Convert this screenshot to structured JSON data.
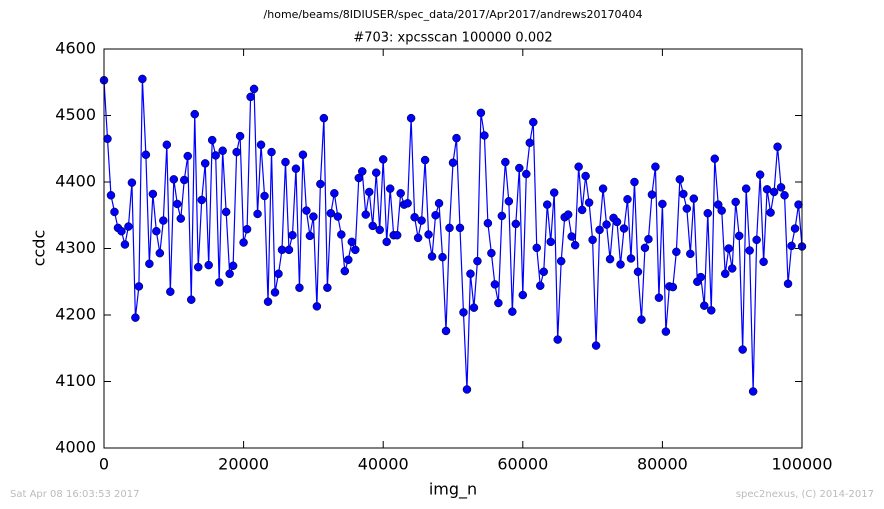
{
  "chart_data": {
    "type": "line",
    "title": "/home/beams/8IDIUSER/spec_data/2017/Apr2017/andrews20170404",
    "subtitle": "#703: xpcsscan 100000 0.002",
    "x_label": "img_n",
    "y_label": "ccdc",
    "footer_left": "Sat Apr 08 16:03:53 2017",
    "footer_right": "spec2nexus, (C) 2014-2017",
    "xlim": [
      0,
      100000
    ],
    "xticks": [
      0,
      20000,
      40000,
      60000,
      80000,
      100000
    ],
    "ylim": [
      4000,
      4600
    ],
    "yticks": [
      4000,
      4100,
      4200,
      4300,
      4400,
      4500,
      4600
    ],
    "x": [
      0,
      500,
      1000,
      1500,
      2000,
      2500,
      3000,
      3500,
      4000,
      4500,
      5000,
      5500,
      6000,
      6500,
      7000,
      7500,
      8000,
      8500,
      9000,
      9500,
      10000,
      10500,
      11000,
      11500,
      12000,
      12500,
      13000,
      13500,
      14000,
      14500,
      15000,
      15500,
      16000,
      16500,
      17000,
      17500,
      18000,
      18500,
      19000,
      19500,
      20000,
      20500,
      21000,
      21500,
      22000,
      22500,
      23000,
      23500,
      24000,
      24500,
      25000,
      25500,
      26000,
      26500,
      27000,
      27500,
      28000,
      28500,
      29000,
      29500,
      30000,
      30500,
      31000,
      31500,
      32000,
      32500,
      33000,
      33500,
      34000,
      34500,
      35000,
      35500,
      36000,
      36500,
      37000,
      37500,
      38000,
      38500,
      39000,
      39500,
      40000,
      40500,
      41000,
      41500,
      42000,
      42500,
      43000,
      43500,
      44000,
      44500,
      45000,
      45500,
      46000,
      46500,
      47000,
      47500,
      48000,
      48500,
      49000,
      49500,
      50000,
      50500,
      51000,
      51500,
      52000,
      52500,
      53000,
      53500,
      54000,
      54500,
      55000,
      55500,
      56000,
      56500,
      57000,
      57500,
      58000,
      58500,
      59000,
      59500,
      60000,
      60500,
      61000,
      61500,
      62000,
      62500,
      63000,
      63500,
      64000,
      64500,
      65000,
      65500,
      66000,
      66500,
      67000,
      67500,
      68000,
      68500,
      69000,
      69500,
      70000,
      70500,
      71000,
      71500,
      72000,
      72500,
      73000,
      73500,
      74000,
      74500,
      75000,
      75500,
      76000,
      76500,
      77000,
      77500,
      78000,
      78500,
      79000,
      79500,
      80000,
      80500,
      81000,
      81500,
      82000,
      82500,
      83000,
      83500,
      84000,
      84500,
      85000,
      85500,
      86000,
      86500,
      87000,
      87500,
      88000,
      88500,
      89000,
      89500,
      90000,
      90500,
      91000,
      91500,
      92000,
      92500,
      93000,
      93500,
      94000,
      94500,
      95000,
      95500,
      96000,
      96500,
      97000,
      97500,
      98000,
      98500,
      99000,
      99500,
      100000
    ],
    "series": [
      {
        "color": "#0000ff",
        "values": [
          4553,
          4465,
          4380,
          4355,
          4331,
          4326,
          4306,
          4333,
          4399,
          4196,
          4243,
          4555,
          4441,
          4277,
          4382,
          4326,
          4293,
          4342,
          4456,
          4235,
          4404,
          4367,
          4345,
          4403,
          4439,
          4223,
          4502,
          4272,
          4373,
          4428,
          4275,
          4463,
          4440,
          4249,
          4447,
          4355,
          4262,
          4274,
          4445,
          4469,
          4309,
          4329,
          4528,
          4540,
          4352,
          4456,
          4379,
          4220,
          4445,
          4234,
          4262,
          4298,
          4430,
          4298,
          4320,
          4420,
          4241,
          4441,
          4357,
          4319,
          4348,
          4213,
          4397,
          4496,
          4241,
          4353,
          4383,
          4348,
          4321,
          4266,
          4283,
          4310,
          4298,
          4406,
          4416,
          4351,
          4385,
          4334,
          4414,
          4328,
          4434,
          4310,
          4390,
          4320,
          4320,
          4383,
          4366,
          4368,
          4496,
          4347,
          4316,
          4342,
          4433,
          4321,
          4288,
          4350,
          4368,
          4287,
          4176,
          4331,
          4429,
          4466,
          4331,
          4204,
          4088,
          4262,
          4211,
          4281,
          4504,
          4470,
          4338,
          4293,
          4246,
          4218,
          4349,
          4430,
          4371,
          4205,
          4337,
          4421,
          4230,
          4412,
          4459,
          4490,
          4301,
          4244,
          4265,
          4366,
          4310,
          4384,
          4163,
          4281,
          4347,
          4351,
          4318,
          4305,
          4423,
          4358,
          4409,
          4369,
          4313,
          4154,
          4328,
          4390,
          4336,
          4284,
          4346,
          4340,
          4276,
          4330,
          4374,
          4285,
          4400,
          4265,
          4193,
          4301,
          4314,
          4381,
          4423,
          4226,
          4367,
          4175,
          4243,
          4242,
          4295,
          4404,
          4382,
          4360,
          4292,
          4375,
          4250,
          4257,
          4214,
          4353,
          4207,
          4435,
          4366,
          4357,
          4262,
          4300,
          4270,
          4370,
          4319,
          4148,
          4390,
          4297,
          4085,
          4313,
          4411,
          4280,
          4389,
          4354,
          4385,
          4453,
          4392,
          4380,
          4247,
          4304,
          4330,
          4366,
          4303
        ]
      }
    ]
  }
}
